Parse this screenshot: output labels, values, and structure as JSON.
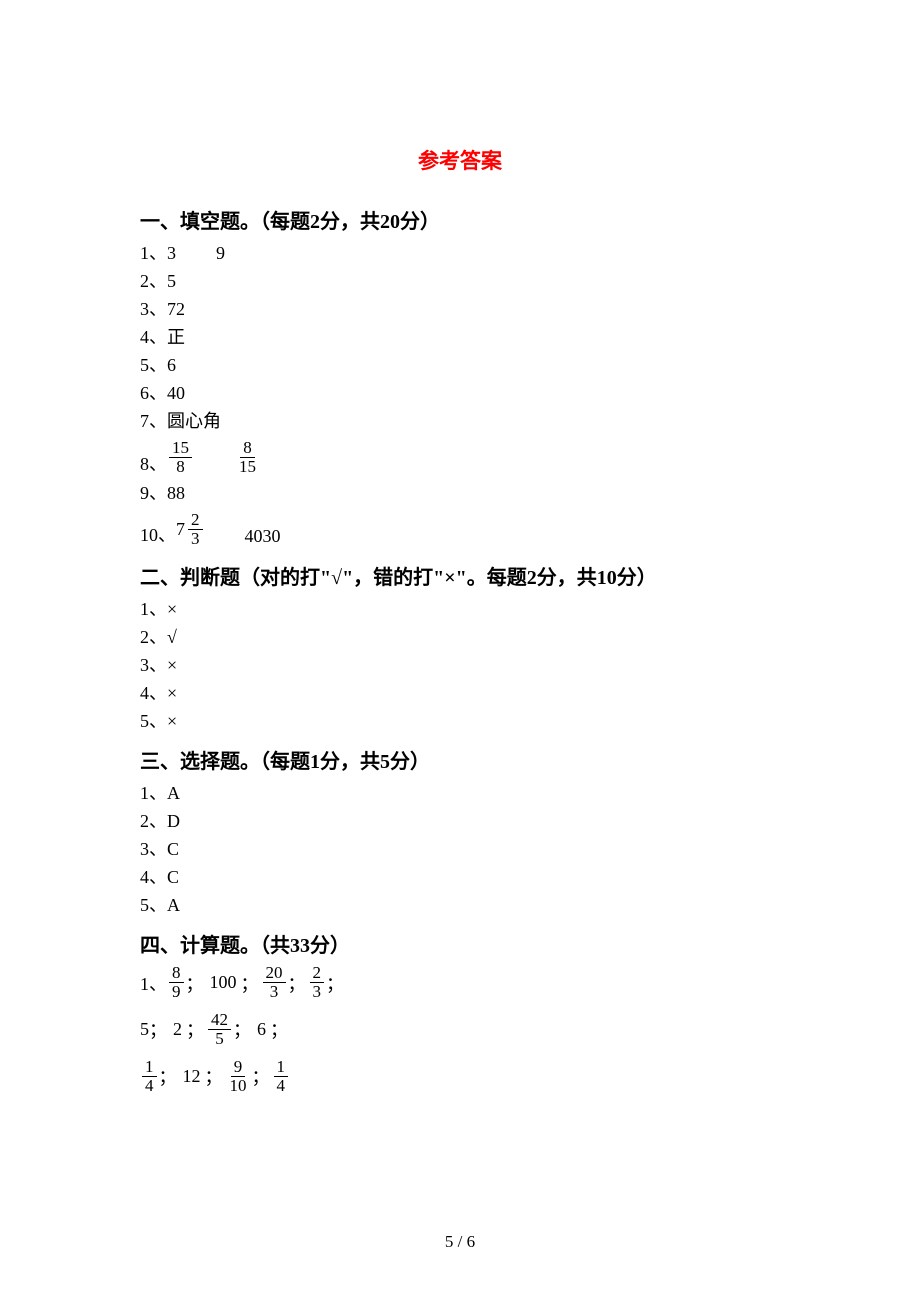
{
  "title": "参考答案",
  "pageNumber": "5 / 6",
  "section1": {
    "header": "一、填空题。（每题2分，共20分）",
    "a1_num": "1、",
    "a1_v1": "3",
    "a1_v2": "9",
    "a2": "2、5",
    "a3": "3、72",
    "a4": "4、正",
    "a5": "5、6",
    "a6": "6、40",
    "a7": "7、圆心角",
    "a8_num": "8、",
    "a8_f1_top": "15",
    "a8_f1_bot": "8",
    "a8_f2_top": "8",
    "a8_f2_bot": "15",
    "a9": "9、88",
    "a10_num": "10、",
    "a10_whole": "7",
    "a10_top": "2",
    "a10_bot": "3",
    "a10_v2": "4030"
  },
  "section2": {
    "header": "二、判断题（对的打\"√\"，错的打\"×\"。每题2分，共10分）",
    "a1": "1、×",
    "a2": "2、√",
    "a3": "3、×",
    "a4": "4、×",
    "a5": "5、×"
  },
  "section3": {
    "header": "三、选择题。（每题1分，共5分）",
    "a1": "1、A",
    "a2": "2、D",
    "a3": "3、C",
    "a4": "4、C",
    "a5": "5、A"
  },
  "section4": {
    "header": "四、计算题。（共33分）",
    "line1": {
      "prefix": "1、",
      "f1_top": "8",
      "f1_bot": "9",
      "v2": "100",
      "f3_top": "20",
      "f3_bot": "3",
      "f4_top": "2",
      "f4_bot": "3"
    },
    "line2": {
      "v1": "5",
      "v2": "2",
      "f3_top": "42",
      "f3_bot": "5",
      "v4": "6"
    },
    "line3": {
      "f1_top": "1",
      "f1_bot": "4",
      "v2": "12",
      "f3_top": "9",
      "f3_bot": "10",
      "f4_top": "1",
      "f4_bot": "4"
    },
    "semi": "；"
  }
}
